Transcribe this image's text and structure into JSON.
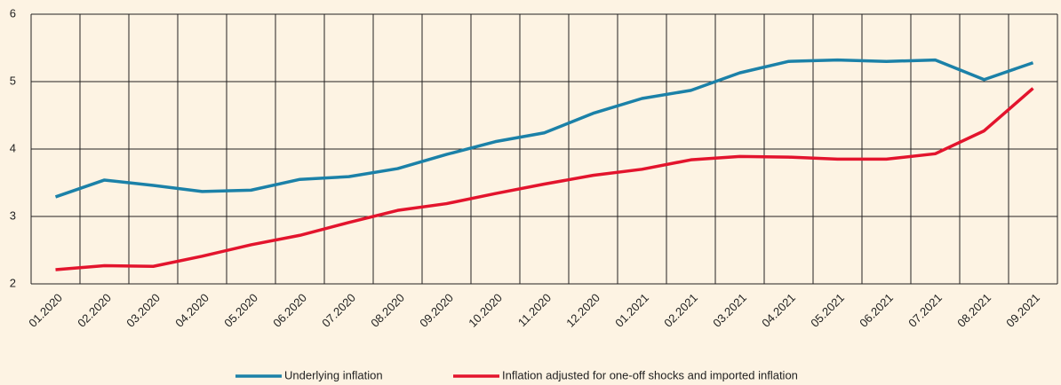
{
  "chart_data": {
    "type": "line",
    "categories": [
      "01.2020",
      "02.2020",
      "03.2020",
      "04.2020",
      "05.2020",
      "06.2020",
      "07.2020",
      "08.2020",
      "09.2020",
      "10.2020",
      "11.2020",
      "12.2020",
      "01.2021",
      "02.2021",
      "03.2021",
      "04.2021",
      "05.2021",
      "06.2021",
      "07.2021",
      "08.2021",
      "09.2021"
    ],
    "series": [
      {
        "name": "Underlying inflation",
        "color": "#1b81a8",
        "values": [
          3.29,
          3.54,
          3.46,
          3.37,
          3.39,
          3.55,
          3.59,
          3.71,
          3.92,
          4.11,
          4.24,
          4.53,
          4.75,
          4.87,
          5.13,
          5.3,
          5.32,
          5.3,
          5.32,
          5.03,
          5.28
        ]
      },
      {
        "name": "Inflation adjusted for one-off shocks and imported inflation",
        "color": "#e3142d",
        "values": [
          2.21,
          2.27,
          2.26,
          2.41,
          2.58,
          2.72,
          2.91,
          3.09,
          3.19,
          3.34,
          3.48,
          3.61,
          3.7,
          3.84,
          3.89,
          3.88,
          3.85,
          3.85,
          3.93,
          4.27,
          4.9
        ]
      }
    ],
    "ylim": [
      2,
      6
    ],
    "yticks": [
      2,
      3,
      4,
      5,
      6
    ],
    "grid": true,
    "legend": "bottom"
  }
}
